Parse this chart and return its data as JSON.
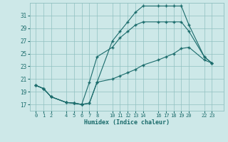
{
  "xlabel": "Humidex (Indice chaleur)",
  "bg_color": "#cde8e8",
  "grid_color": "#90c0c0",
  "line_color": "#1a6b6b",
  "xticks": [
    0,
    1,
    2,
    4,
    5,
    6,
    7,
    8,
    10,
    11,
    12,
    13,
    14,
    16,
    17,
    18,
    19,
    20,
    22,
    23
  ],
  "yticks": [
    17,
    19,
    21,
    23,
    25,
    27,
    29,
    31
  ],
  "ylim": [
    16.0,
    33.0
  ],
  "xlim": [
    -0.8,
    24.5
  ],
  "line1_x": [
    0,
    1,
    2,
    4,
    5,
    6,
    7,
    8,
    10,
    11,
    12,
    13,
    14,
    16,
    17,
    18,
    19,
    20,
    22,
    23
  ],
  "line1_y": [
    20.0,
    19.5,
    18.2,
    17.3,
    17.2,
    17.0,
    17.2,
    20.5,
    27.0,
    28.5,
    30.0,
    31.5,
    32.5,
    32.5,
    32.5,
    32.5,
    32.5,
    29.5,
    24.5,
    23.5
  ],
  "line2_x": [
    0,
    1,
    2,
    4,
    5,
    6,
    7,
    8,
    10,
    11,
    12,
    13,
    14,
    16,
    17,
    18,
    19,
    20,
    22,
    23
  ],
  "line2_y": [
    20.0,
    19.5,
    18.2,
    17.3,
    17.2,
    17.0,
    20.5,
    24.5,
    26.0,
    27.5,
    28.5,
    29.5,
    30.0,
    30.0,
    30.0,
    30.0,
    30.0,
    28.5,
    24.5,
    23.5
  ],
  "line3_x": [
    0,
    1,
    2,
    4,
    5,
    6,
    7,
    8,
    10,
    11,
    12,
    13,
    14,
    16,
    17,
    18,
    19,
    20,
    22,
    23
  ],
  "line3_y": [
    20.0,
    19.5,
    18.2,
    17.3,
    17.2,
    17.0,
    17.2,
    20.5,
    21.0,
    21.5,
    22.0,
    22.5,
    23.2,
    24.0,
    24.5,
    25.0,
    25.8,
    26.0,
    24.0,
    23.5
  ]
}
